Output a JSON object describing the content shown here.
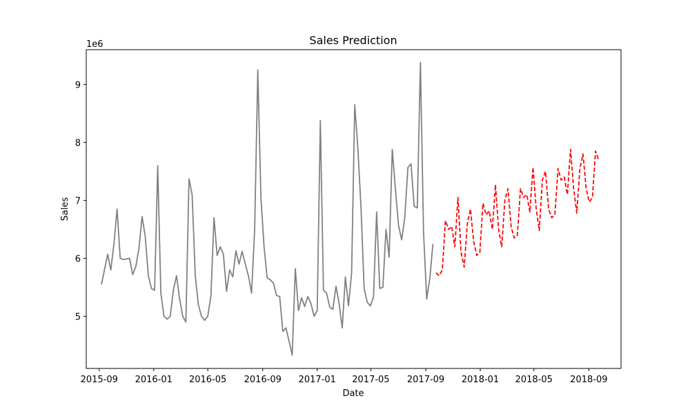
{
  "chart_data": {
    "type": "line",
    "title": "Sales Prediction",
    "xlabel": "Date",
    "ylabel": "Sales",
    "y_offset_label": "1e6",
    "grid": false,
    "xlim": [
      "2015-08-03",
      "2018-11-12"
    ],
    "ylim": [
      4.1,
      9.6
    ],
    "x_ticks": [
      {
        "date": "2015-09-01",
        "label": "2015-09"
      },
      {
        "date": "2016-01-01",
        "label": "2016-01"
      },
      {
        "date": "2016-05-01",
        "label": "2016-05"
      },
      {
        "date": "2016-09-01",
        "label": "2016-09"
      },
      {
        "date": "2017-01-01",
        "label": "2017-01"
      },
      {
        "date": "2017-05-01",
        "label": "2017-05"
      },
      {
        "date": "2017-09-01",
        "label": "2017-09"
      },
      {
        "date": "2018-01-01",
        "label": "2018-01"
      },
      {
        "date": "2018-05-01",
        "label": "2018-05"
      },
      {
        "date": "2018-09-01",
        "label": "2018-09"
      }
    ],
    "y_ticks": [
      {
        "value": 5,
        "label": "5"
      },
      {
        "value": 6,
        "label": "6"
      },
      {
        "value": 7,
        "label": "7"
      },
      {
        "value": 8,
        "label": "8"
      },
      {
        "value": 9,
        "label": "9"
      }
    ],
    "series": [
      {
        "color": "#808080",
        "style": "solid",
        "points": [
          [
            "2015-09-06",
            5.55
          ],
          [
            "2015-09-20",
            6.07
          ],
          [
            "2015-09-27",
            5.8
          ],
          [
            "2015-10-04",
            6.25
          ],
          [
            "2015-10-11",
            6.85
          ],
          [
            "2015-10-18",
            6.0
          ],
          [
            "2015-10-25",
            5.98
          ],
          [
            "2015-11-08",
            6.0
          ],
          [
            "2015-11-15",
            5.72
          ],
          [
            "2015-11-22",
            5.86
          ],
          [
            "2015-11-29",
            6.17
          ],
          [
            "2015-12-06",
            6.72
          ],
          [
            "2015-12-13",
            6.38
          ],
          [
            "2015-12-20",
            5.7
          ],
          [
            "2015-12-27",
            5.48
          ],
          [
            "2016-01-03",
            5.45
          ],
          [
            "2016-01-10",
            7.6
          ],
          [
            "2016-01-17",
            5.4
          ],
          [
            "2016-01-24",
            5.0
          ],
          [
            "2016-01-31",
            4.95
          ],
          [
            "2016-02-07",
            5.0
          ],
          [
            "2016-02-14",
            5.45
          ],
          [
            "2016-02-21",
            5.7
          ],
          [
            "2016-02-28",
            5.3
          ],
          [
            "2016-03-06",
            5.0
          ],
          [
            "2016-03-13",
            4.9
          ],
          [
            "2016-03-20",
            7.37
          ],
          [
            "2016-03-27",
            7.1
          ],
          [
            "2016-04-03",
            5.7
          ],
          [
            "2016-04-10",
            5.2
          ],
          [
            "2016-04-17",
            5.0
          ],
          [
            "2016-04-24",
            4.93
          ],
          [
            "2016-05-01",
            5.0
          ],
          [
            "2016-05-08",
            5.35
          ],
          [
            "2016-05-15",
            6.7
          ],
          [
            "2016-05-22",
            6.05
          ],
          [
            "2016-05-29",
            6.2
          ],
          [
            "2016-06-05",
            6.07
          ],
          [
            "2016-06-12",
            5.43
          ],
          [
            "2016-06-19",
            5.8
          ],
          [
            "2016-06-26",
            5.68
          ],
          [
            "2016-07-03",
            6.13
          ],
          [
            "2016-07-10",
            5.9
          ],
          [
            "2016-07-17",
            6.12
          ],
          [
            "2016-07-24",
            5.9
          ],
          [
            "2016-07-31",
            5.7
          ],
          [
            "2016-08-07",
            5.4
          ],
          [
            "2016-08-14",
            6.5
          ],
          [
            "2016-08-21",
            9.25
          ],
          [
            "2016-08-28",
            7.05
          ],
          [
            "2016-09-04",
            6.2
          ],
          [
            "2016-09-11",
            5.66
          ],
          [
            "2016-09-18",
            5.63
          ],
          [
            "2016-09-25",
            5.57
          ],
          [
            "2016-10-02",
            5.36
          ],
          [
            "2016-10-09",
            5.34
          ],
          [
            "2016-10-16",
            4.74
          ],
          [
            "2016-10-23",
            4.8
          ],
          [
            "2016-10-30",
            4.57
          ],
          [
            "2016-11-06",
            4.33
          ],
          [
            "2016-11-13",
            5.82
          ],
          [
            "2016-11-20",
            5.1
          ],
          [
            "2016-11-27",
            5.32
          ],
          [
            "2016-12-04",
            5.17
          ],
          [
            "2016-12-11",
            5.34
          ],
          [
            "2016-12-18",
            5.22
          ],
          [
            "2016-12-25",
            5.0
          ],
          [
            "2017-01-01",
            5.1
          ],
          [
            "2017-01-08",
            8.38
          ],
          [
            "2017-01-15",
            5.45
          ],
          [
            "2017-01-22",
            5.4
          ],
          [
            "2017-01-29",
            5.16
          ],
          [
            "2017-02-05",
            5.12
          ],
          [
            "2017-02-12",
            5.52
          ],
          [
            "2017-02-19",
            5.22
          ],
          [
            "2017-02-26",
            4.8
          ],
          [
            "2017-03-05",
            5.68
          ],
          [
            "2017-03-12",
            5.18
          ],
          [
            "2017-03-19",
            5.75
          ],
          [
            "2017-03-26",
            8.65
          ],
          [
            "2017-04-02",
            7.9
          ],
          [
            "2017-04-09",
            6.88
          ],
          [
            "2017-04-16",
            5.48
          ],
          [
            "2017-04-23",
            5.24
          ],
          [
            "2017-04-30",
            5.18
          ],
          [
            "2017-05-07",
            5.33
          ],
          [
            "2017-05-14",
            6.8
          ],
          [
            "2017-05-21",
            5.48
          ],
          [
            "2017-05-28",
            5.5
          ],
          [
            "2017-06-04",
            6.5
          ],
          [
            "2017-06-11",
            6.02
          ],
          [
            "2017-06-18",
            7.88
          ],
          [
            "2017-06-25",
            7.2
          ],
          [
            "2017-07-02",
            6.57
          ],
          [
            "2017-07-09",
            6.32
          ],
          [
            "2017-07-16",
            6.7
          ],
          [
            "2017-07-23",
            7.57
          ],
          [
            "2017-07-30",
            7.63
          ],
          [
            "2017-08-06",
            6.9
          ],
          [
            "2017-08-13",
            6.87
          ],
          [
            "2017-08-20",
            9.38
          ],
          [
            "2017-08-27",
            6.45
          ],
          [
            "2017-09-03",
            5.3
          ],
          [
            "2017-09-10",
            5.65
          ],
          [
            "2017-09-17",
            6.25
          ]
        ]
      },
      {
        "color": "#ff0000",
        "style": "dashed",
        "points": [
          [
            "2017-09-24",
            5.75
          ],
          [
            "2017-10-01",
            5.7
          ],
          [
            "2017-10-08",
            5.8
          ],
          [
            "2017-10-15",
            6.65
          ],
          [
            "2017-10-22",
            6.5
          ],
          [
            "2017-10-29",
            6.55
          ],
          [
            "2017-11-05",
            6.2
          ],
          [
            "2017-11-12",
            7.05
          ],
          [
            "2017-11-19",
            6.1
          ],
          [
            "2017-11-26",
            5.85
          ],
          [
            "2017-12-03",
            6.6
          ],
          [
            "2017-12-10",
            6.85
          ],
          [
            "2017-12-17",
            6.3
          ],
          [
            "2017-12-24",
            6.05
          ],
          [
            "2017-12-31",
            6.1
          ],
          [
            "2018-01-07",
            6.95
          ],
          [
            "2018-01-14",
            6.75
          ],
          [
            "2018-01-21",
            6.82
          ],
          [
            "2018-01-28",
            6.5
          ],
          [
            "2018-02-04",
            7.27
          ],
          [
            "2018-02-11",
            6.5
          ],
          [
            "2018-02-18",
            6.2
          ],
          [
            "2018-02-25",
            7.0
          ],
          [
            "2018-03-04",
            7.2
          ],
          [
            "2018-03-11",
            6.55
          ],
          [
            "2018-03-18",
            6.35
          ],
          [
            "2018-03-25",
            6.4
          ],
          [
            "2018-04-01",
            7.2
          ],
          [
            "2018-04-08",
            7.05
          ],
          [
            "2018-04-15",
            7.1
          ],
          [
            "2018-04-22",
            6.8
          ],
          [
            "2018-04-29",
            7.57
          ],
          [
            "2018-05-06",
            6.87
          ],
          [
            "2018-05-13",
            6.48
          ],
          [
            "2018-05-20",
            7.35
          ],
          [
            "2018-05-27",
            7.5
          ],
          [
            "2018-06-03",
            6.85
          ],
          [
            "2018-06-10",
            6.7
          ],
          [
            "2018-06-17",
            6.75
          ],
          [
            "2018-06-24",
            7.55
          ],
          [
            "2018-07-01",
            7.35
          ],
          [
            "2018-07-08",
            7.4
          ],
          [
            "2018-07-15",
            7.1
          ],
          [
            "2018-07-22",
            7.88
          ],
          [
            "2018-07-29",
            7.2
          ],
          [
            "2018-08-05",
            6.78
          ],
          [
            "2018-08-12",
            7.55
          ],
          [
            "2018-08-19",
            7.8
          ],
          [
            "2018-08-26",
            7.2
          ],
          [
            "2018-09-02",
            6.97
          ],
          [
            "2018-09-09",
            7.05
          ],
          [
            "2018-09-16",
            7.85
          ],
          [
            "2018-09-23",
            7.7
          ]
        ]
      }
    ]
  }
}
